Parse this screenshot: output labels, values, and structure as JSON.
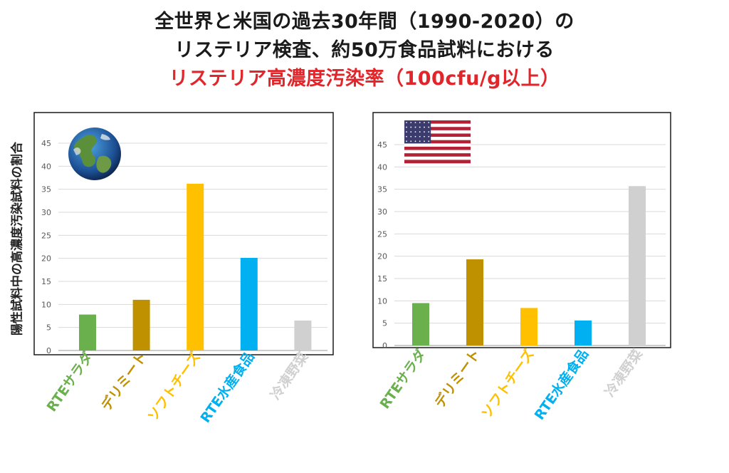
{
  "title": {
    "line1": "全世界と米国の過去30年間（1990-2020）の",
    "line2": "リステリア検査、約50万食品試料における",
    "line3": "リステリア高濃度汚染率（100cfu/g以上）"
  },
  "y_axis_label": "陽性試料中の高濃度汚染試料の割合",
  "colors": {
    "RTEサラダ": "#6ab04c",
    "デリミート": "#bf9000",
    "ソフトチーズ": "#ffc000",
    "RTE水産食品": "#00b0f0",
    "冷凍野菜": "#d0d0d0"
  },
  "chart_data": [
    {
      "type": "bar",
      "region_icon": "globe-icon",
      "categories": [
        "RTEサラダ",
        "デリミート",
        "ソフトチーズ",
        "RTE水産食品",
        "冷凍野菜"
      ],
      "values": [
        7.8,
        11,
        36.2,
        20.1,
        6.5
      ],
      "yticks": [
        0,
        5,
        10,
        15,
        20,
        25,
        30,
        35,
        40,
        45
      ],
      "ylim": [
        0,
        50
      ],
      "grid": true
    },
    {
      "type": "bar",
      "region_icon": "us-flag-icon",
      "categories": [
        "RTEサラダ",
        "デリミート",
        "ソフトチーズ",
        "RTE水産食品",
        "冷凍野菜"
      ],
      "values": [
        9.5,
        19.3,
        8.4,
        5.6,
        35.7
      ],
      "yticks": [
        0,
        5,
        10,
        15,
        20,
        25,
        30,
        35,
        40,
        45
      ],
      "ylim": [
        0,
        50
      ],
      "grid": true
    }
  ]
}
